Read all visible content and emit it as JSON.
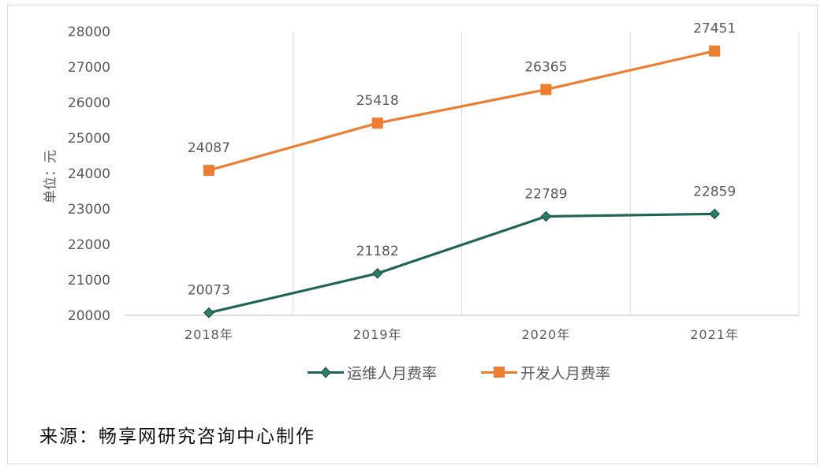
{
  "chart_data": {
    "type": "line",
    "categories": [
      "2018年",
      "2019年",
      "2020年",
      "2021年"
    ],
    "series": [
      {
        "name": "运维人月费率",
        "values": [
          20073,
          21182,
          22789,
          22859
        ],
        "color": "#1f6655",
        "marker": "diamond"
      },
      {
        "name": "开发人月费率",
        "values": [
          24087,
          25418,
          26365,
          27451
        ],
        "color": "#ed7d31",
        "marker": "square"
      }
    ],
    "ylabel": "单位：元",
    "ylim": [
      20000,
      28000
    ],
    "yticks": [
      20000,
      21000,
      22000,
      23000,
      24000,
      25000,
      26000,
      27000,
      28000
    ],
    "grid": "vertical",
    "legend_position": "bottom",
    "data_labels": true
  },
  "source_note": "来源：畅享网研究咨询中心制作"
}
